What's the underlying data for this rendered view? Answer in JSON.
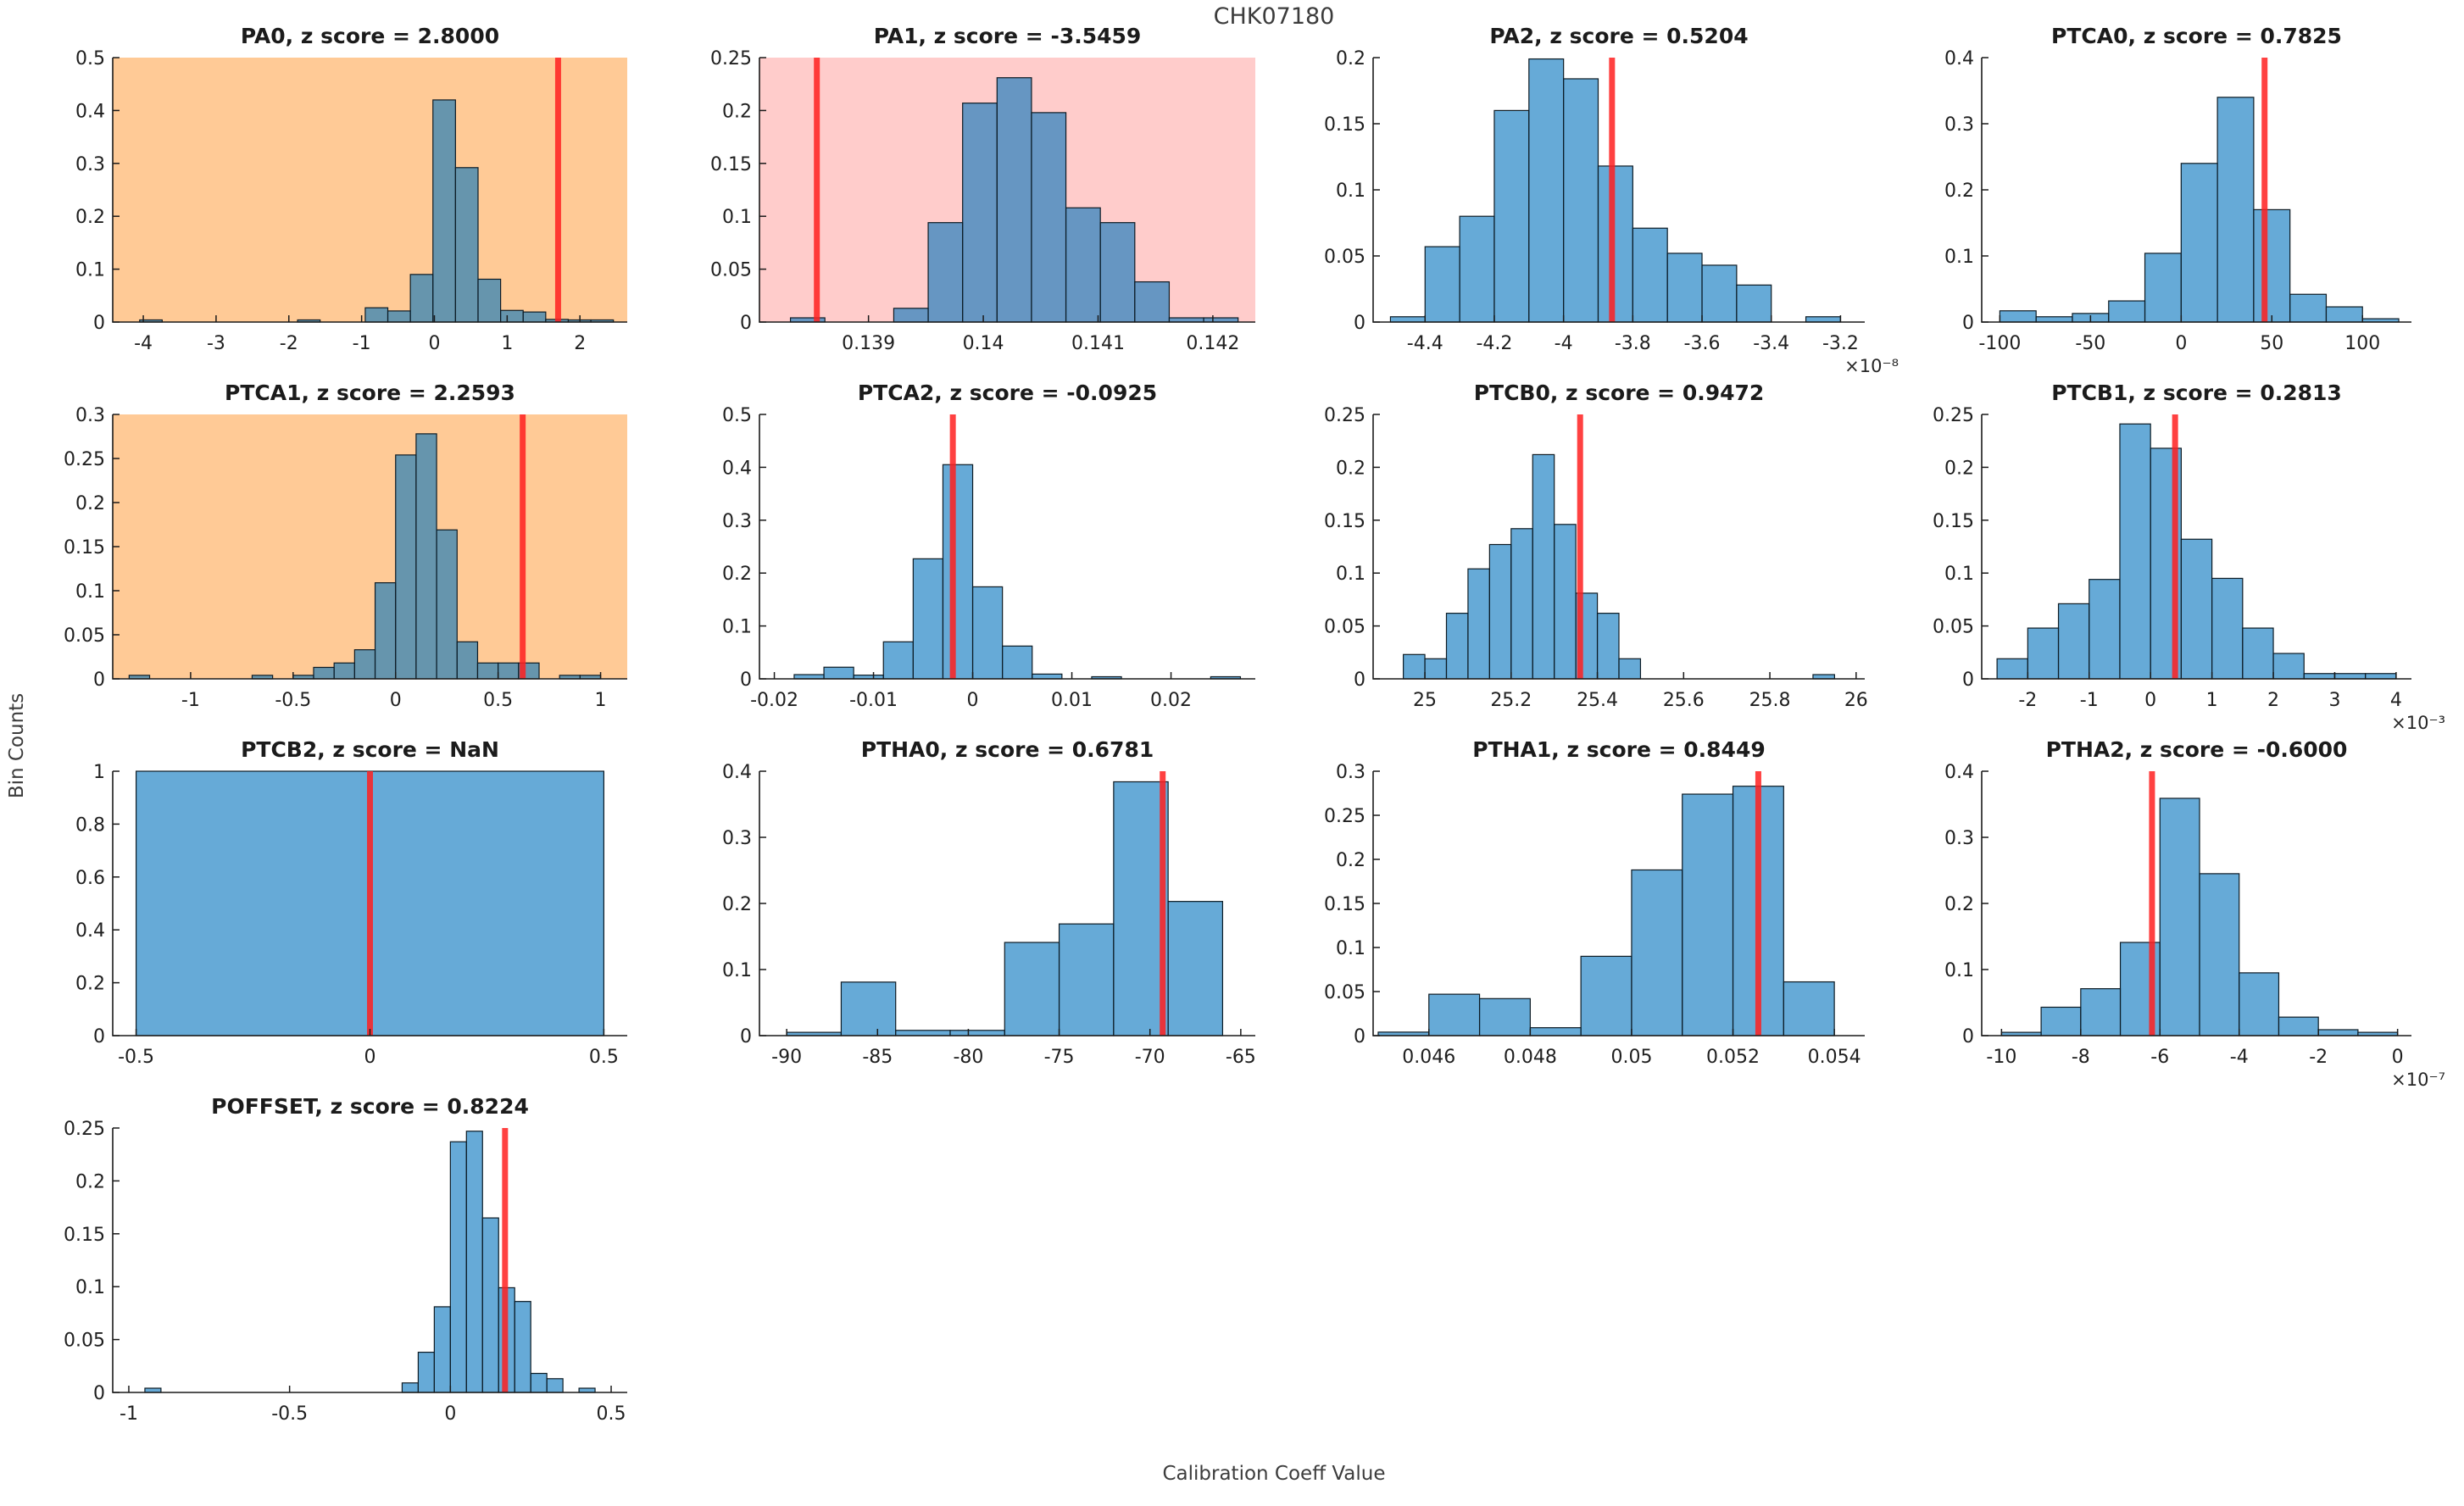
{
  "figure": {
    "title": "CHK07180",
    "xlabel": "Calibration Coeff Value",
    "ylabel": "Bin Counts",
    "colors": {
      "bar_fill": "#0072bd",
      "bar_edge": "#0d1b24",
      "red_line": "#ff2020",
      "bg_orange": "#ffca96",
      "bg_pink": "#ffcccb",
      "bg_white": "#ffffff",
      "axis": "#1a1a1a",
      "tick_text": "#1f1f1f"
    }
  },
  "chart_data": [
    {
      "id": "pa0",
      "type": "bar",
      "title": "PA0, z score = 2.8000",
      "z_score": "2.8000",
      "background": "orange",
      "xlim": [
        -4.42,
        2.65
      ],
      "ylim": [
        0,
        0.5
      ],
      "xtick_vals": [
        -4,
        -3,
        -2,
        -1,
        0,
        1,
        2
      ],
      "xtick_labels": [
        "-4",
        "-3",
        "-2",
        "-1",
        "0",
        "1",
        "2"
      ],
      "ytick_vals": [
        0,
        0.1,
        0.2,
        0.3,
        0.4,
        0.5
      ],
      "ytick_labels": [
        "0",
        "0.1",
        "0.2",
        "0.3",
        "0.4",
        "0.5"
      ],
      "x_exponent_label": null,
      "red_line_x": 1.7,
      "bars": [
        [
          -4.05,
          -3.74,
          0.004
        ],
        [
          -1.88,
          -1.57,
          0.004
        ],
        [
          -0.95,
          -0.64,
          0.027
        ],
        [
          -0.64,
          -0.33,
          0.021
        ],
        [
          -0.33,
          -0.02,
          0.09
        ],
        [
          -0.02,
          0.29,
          0.42
        ],
        [
          0.29,
          0.6,
          0.292
        ],
        [
          0.6,
          0.91,
          0.081
        ],
        [
          0.91,
          1.22,
          0.022
        ],
        [
          1.22,
          1.53,
          0.019
        ],
        [
          1.53,
          1.84,
          0.005
        ],
        [
          1.84,
          2.15,
          0.004
        ],
        [
          2.15,
          2.46,
          0.004
        ]
      ]
    },
    {
      "id": "pa1",
      "type": "bar",
      "title": "PA1, z score = -3.5459",
      "z_score": "-3.5459",
      "background": "pink",
      "xlim": [
        0.13805,
        0.14237
      ],
      "ylim": [
        0,
        0.25
      ],
      "xtick_vals": [
        0.139,
        0.14,
        0.141,
        0.142
      ],
      "xtick_labels": [
        "0.139",
        "0.14",
        "0.141",
        "0.142"
      ],
      "ytick_vals": [
        0,
        0.05,
        0.1,
        0.15,
        0.2,
        0.25
      ],
      "ytick_labels": [
        "0",
        "0.05",
        "0.1",
        "0.15",
        "0.2",
        "0.25"
      ],
      "x_exponent_label": null,
      "red_line_x": 0.13855,
      "bars": [
        [
          0.13832,
          0.13862,
          0.004
        ],
        [
          0.13922,
          0.13952,
          0.013
        ],
        [
          0.13952,
          0.13982,
          0.094
        ],
        [
          0.13982,
          0.14012,
          0.207
        ],
        [
          0.14012,
          0.14042,
          0.231
        ],
        [
          0.14042,
          0.14072,
          0.198
        ],
        [
          0.14072,
          0.14102,
          0.108
        ],
        [
          0.14102,
          0.14132,
          0.094
        ],
        [
          0.14132,
          0.14162,
          0.038
        ],
        [
          0.14162,
          0.14192,
          0.004
        ],
        [
          0.14192,
          0.14222,
          0.004
        ]
      ]
    },
    {
      "id": "pa2",
      "type": "bar",
      "title": "PA2, z score = 0.5204",
      "z_score": "0.5204",
      "background": "white",
      "xlim": [
        -4.55,
        -3.13
      ],
      "ylim": [
        0,
        0.2
      ],
      "xtick_vals": [
        -4.4,
        -4.2,
        -4,
        -3.8,
        -3.6,
        -3.4,
        -3.2
      ],
      "xtick_labels": [
        "-4.4",
        "-4.2",
        "-4",
        "-3.8",
        "-3.6",
        "-3.4",
        "-3.2"
      ],
      "ytick_vals": [
        0,
        0.05,
        0.1,
        0.15,
        0.2
      ],
      "ytick_labels": [
        "0",
        "0.05",
        "0.1",
        "0.15",
        "0.2"
      ],
      "x_exponent_label": "×10⁻⁸",
      "red_line_x": -3.86,
      "bars": [
        [
          -4.5,
          -4.4,
          0.004
        ],
        [
          -4.4,
          -4.3,
          0.057
        ],
        [
          -4.3,
          -4.2,
          0.08
        ],
        [
          -4.2,
          -4.1,
          0.16
        ],
        [
          -4.1,
          -4.0,
          0.199
        ],
        [
          -4.0,
          -3.9,
          0.184
        ],
        [
          -3.9,
          -3.8,
          0.118
        ],
        [
          -3.8,
          -3.7,
          0.071
        ],
        [
          -3.7,
          -3.6,
          0.052
        ],
        [
          -3.6,
          -3.5,
          0.043
        ],
        [
          -3.5,
          -3.4,
          0.028
        ],
        [
          -3.3,
          -3.2,
          0.004
        ]
      ]
    },
    {
      "id": "ptca0",
      "type": "bar",
      "title": "PTCA0, z score = 0.7825",
      "z_score": "0.7825",
      "background": "white",
      "xlim": [
        -110,
        127
      ],
      "ylim": [
        0,
        0.4
      ],
      "xtick_vals": [
        -100,
        -50,
        0,
        50,
        100
      ],
      "xtick_labels": [
        "-100",
        "-50",
        "0",
        "50",
        "100"
      ],
      "ytick_vals": [
        0,
        0.1,
        0.2,
        0.3,
        0.4
      ],
      "ytick_labels": [
        "0",
        "0.1",
        "0.2",
        "0.3",
        "0.4"
      ],
      "x_exponent_label": null,
      "red_line_x": 46,
      "bars": [
        [
          -100,
          -80,
          0.017
        ],
        [
          -80,
          -60,
          0.008
        ],
        [
          -60,
          -40,
          0.013
        ],
        [
          -40,
          -20,
          0.032
        ],
        [
          -20,
          0,
          0.104
        ],
        [
          0,
          20,
          0.24
        ],
        [
          20,
          40,
          0.34
        ],
        [
          40,
          60,
          0.17
        ],
        [
          60,
          80,
          0.042
        ],
        [
          80,
          100,
          0.023
        ],
        [
          100,
          120,
          0.005
        ]
      ]
    },
    {
      "id": "ptca1",
      "type": "bar",
      "title": "PTCA1, z score = 2.2593",
      "z_score": "2.2593",
      "background": "orange",
      "xlim": [
        -1.38,
        1.13
      ],
      "ylim": [
        0,
        0.3
      ],
      "xtick_vals": [
        -1,
        -0.5,
        0,
        0.5,
        1
      ],
      "xtick_labels": [
        "-1",
        "-0.5",
        "0",
        "0.5",
        "1"
      ],
      "ytick_vals": [
        0,
        0.05,
        0.1,
        0.15,
        0.2,
        0.25,
        0.3
      ],
      "ytick_labels": [
        "0",
        "0.05",
        "0.1",
        "0.15",
        "0.2",
        "0.25",
        "0.3"
      ],
      "x_exponent_label": null,
      "red_line_x": 0.62,
      "bars": [
        [
          -1.3,
          -1.2,
          0.004
        ],
        [
          -0.7,
          -0.6,
          0.004
        ],
        [
          -0.5,
          -0.4,
          0.004
        ],
        [
          -0.4,
          -0.3,
          0.013
        ],
        [
          -0.3,
          -0.2,
          0.018
        ],
        [
          -0.2,
          -0.1,
          0.033
        ],
        [
          -0.1,
          0,
          0.109
        ],
        [
          0,
          0.1,
          0.254
        ],
        [
          0.1,
          0.2,
          0.278
        ],
        [
          0.2,
          0.3,
          0.169
        ],
        [
          0.3,
          0.4,
          0.042
        ],
        [
          0.4,
          0.5,
          0.018
        ],
        [
          0.5,
          0.6,
          0.018
        ],
        [
          0.6,
          0.7,
          0.018
        ],
        [
          0.8,
          0.9,
          0.004
        ],
        [
          0.9,
          1.0,
          0.004
        ]
      ]
    },
    {
      "id": "ptca2",
      "type": "bar",
      "title": "PTCA2, z score = -0.0925",
      "z_score": "-0.0925",
      "background": "white",
      "xlim": [
        -0.0215,
        0.0285
      ],
      "ylim": [
        0,
        0.5
      ],
      "xtick_vals": [
        -0.02,
        -0.01,
        0,
        0.01,
        0.02
      ],
      "xtick_labels": [
        "-0.02",
        "-0.01",
        "0",
        "0.01",
        "0.02"
      ],
      "ytick_vals": [
        0,
        0.1,
        0.2,
        0.3,
        0.4,
        0.5
      ],
      "ytick_labels": [
        "0",
        "0.1",
        "0.2",
        "0.3",
        "0.4",
        "0.5"
      ],
      "x_exponent_label": null,
      "red_line_x": -0.002,
      "bars": [
        [
          -0.018,
          -0.015,
          0.008
        ],
        [
          -0.015,
          -0.012,
          0.022
        ],
        [
          -0.012,
          -0.009,
          0.007
        ],
        [
          -0.009,
          -0.006,
          0.07
        ],
        [
          -0.006,
          -0.003,
          0.227
        ],
        [
          -0.003,
          0,
          0.405
        ],
        [
          0,
          0.003,
          0.174
        ],
        [
          0.003,
          0.006,
          0.062
        ],
        [
          0.006,
          0.009,
          0.009
        ],
        [
          0.012,
          0.015,
          0.004
        ],
        [
          0.024,
          0.027,
          0.004
        ]
      ]
    },
    {
      "id": "ptcb0",
      "type": "bar",
      "title": "PTCB0, z score = 0.9472",
      "z_score": "0.9472",
      "background": "white",
      "xlim": [
        24.88,
        26.02
      ],
      "ylim": [
        0,
        0.25
      ],
      "xtick_vals": [
        25,
        25.2,
        25.4,
        25.6,
        25.8,
        26
      ],
      "xtick_labels": [
        "25",
        "25.2",
        "25.4",
        "25.6",
        "25.8",
        "26"
      ],
      "ytick_vals": [
        0,
        0.05,
        0.1,
        0.15,
        0.2,
        0.25
      ],
      "ytick_labels": [
        "0",
        "0.05",
        "0.1",
        "0.15",
        "0.2",
        "0.25"
      ],
      "x_exponent_label": null,
      "red_line_x": 25.36,
      "bars": [
        [
          24.95,
          25.0,
          0.023
        ],
        [
          25.0,
          25.05,
          0.019
        ],
        [
          25.05,
          25.1,
          0.062
        ],
        [
          25.1,
          25.15,
          0.104
        ],
        [
          25.15,
          25.2,
          0.127
        ],
        [
          25.2,
          25.25,
          0.142
        ],
        [
          25.25,
          25.3,
          0.212
        ],
        [
          25.3,
          25.35,
          0.146
        ],
        [
          25.35,
          25.4,
          0.081
        ],
        [
          25.4,
          25.45,
          0.062
        ],
        [
          25.45,
          25.5,
          0.019
        ],
        [
          25.9,
          25.95,
          0.004
        ]
      ]
    },
    {
      "id": "ptcb1",
      "type": "bar",
      "title": "PTCB1, z score = 0.2813",
      "z_score": "0.2813",
      "background": "white",
      "xlim": [
        -2.75,
        4.25
      ],
      "ylim": [
        0,
        0.25
      ],
      "xtick_vals": [
        -2,
        -1,
        0,
        1,
        2,
        3,
        4
      ],
      "xtick_labels": [
        "-2",
        "-1",
        "0",
        "1",
        "2",
        "3",
        "4"
      ],
      "ytick_vals": [
        0,
        0.05,
        0.1,
        0.15,
        0.2,
        0.25
      ],
      "ytick_labels": [
        "0",
        "0.05",
        "0.1",
        "0.15",
        "0.2",
        "0.25"
      ],
      "x_exponent_label": "×10⁻³",
      "red_line_x": 0.4,
      "bars": [
        [
          -2.5,
          -2,
          0.019
        ],
        [
          -2,
          -1.5,
          0.048
        ],
        [
          -1.5,
          -1,
          0.071
        ],
        [
          -1,
          -0.5,
          0.094
        ],
        [
          -0.5,
          0,
          0.241
        ],
        [
          0,
          0.5,
          0.218
        ],
        [
          0.5,
          1,
          0.132
        ],
        [
          1,
          1.5,
          0.095
        ],
        [
          1.5,
          2,
          0.048
        ],
        [
          2,
          2.5,
          0.024
        ],
        [
          2.5,
          3,
          0.005
        ],
        [
          3,
          3.5,
          0.005
        ],
        [
          3.5,
          4,
          0.005
        ]
      ]
    },
    {
      "id": "ptcb2",
      "type": "bar",
      "title": "PTCB2, z score = NaN",
      "z_score": "NaN",
      "background": "white",
      "xlim": [
        -0.55,
        0.55
      ],
      "ylim": [
        0,
        1
      ],
      "xtick_vals": [
        -0.5,
        0,
        0.5
      ],
      "xtick_labels": [
        "-0.5",
        "0",
        "0.5"
      ],
      "ytick_vals": [
        0,
        0.2,
        0.4,
        0.6,
        0.8,
        1
      ],
      "ytick_labels": [
        "0",
        "0.2",
        "0.4",
        "0.6",
        "0.8",
        "1"
      ],
      "x_exponent_label": null,
      "red_line_x": 0,
      "bars": [
        [
          -0.5,
          0.5,
          1.0
        ]
      ]
    },
    {
      "id": "ptha0",
      "type": "bar",
      "title": "PTHA0, z score = 0.6781",
      "z_score": "0.6781",
      "background": "white",
      "xlim": [
        -91.5,
        -64.2
      ],
      "ylim": [
        0,
        0.4
      ],
      "xtick_vals": [
        -90,
        -85,
        -80,
        -75,
        -70,
        -65
      ],
      "xtick_labels": [
        "-90",
        "-85",
        "-80",
        "-75",
        "-70",
        "-65"
      ],
      "ytick_vals": [
        0,
        0.1,
        0.2,
        0.3,
        0.4
      ],
      "ytick_labels": [
        "0",
        "0.1",
        "0.2",
        "0.3",
        "0.4"
      ],
      "x_exponent_label": null,
      "red_line_x": -69.3,
      "bars": [
        [
          -90,
          -87,
          0.005
        ],
        [
          -87,
          -84,
          0.081
        ],
        [
          -84,
          -81,
          0.008
        ],
        [
          -81,
          -78,
          0.008
        ],
        [
          -78,
          -75,
          0.141
        ],
        [
          -75,
          -72,
          0.169
        ],
        [
          -72,
          -69,
          0.384
        ],
        [
          -69,
          -66,
          0.203
        ]
      ]
    },
    {
      "id": "ptha1",
      "type": "bar",
      "title": "PTHA1, z score = 0.8449",
      "z_score": "0.8449",
      "background": "white",
      "xlim": [
        0.0449,
        0.0546
      ],
      "ylim": [
        0,
        0.3
      ],
      "xtick_vals": [
        0.046,
        0.048,
        0.05,
        0.052,
        0.054
      ],
      "xtick_labels": [
        "0.046",
        "0.048",
        "0.05",
        "0.052",
        "0.054"
      ],
      "ytick_vals": [
        0,
        0.05,
        0.1,
        0.15,
        0.2,
        0.25,
        0.3
      ],
      "ytick_labels": [
        "0",
        "0.05",
        "0.1",
        "0.15",
        "0.2",
        "0.25",
        "0.3"
      ],
      "x_exponent_label": null,
      "red_line_x": 0.0525,
      "bars": [
        [
          0.045,
          0.046,
          0.004
        ],
        [
          0.046,
          0.047,
          0.047
        ],
        [
          0.047,
          0.048,
          0.042
        ],
        [
          0.048,
          0.049,
          0.009
        ],
        [
          0.049,
          0.05,
          0.09
        ],
        [
          0.05,
          0.051,
          0.188
        ],
        [
          0.051,
          0.052,
          0.274
        ],
        [
          0.052,
          0.053,
          0.283
        ],
        [
          0.053,
          0.054,
          0.061
        ]
      ]
    },
    {
      "id": "ptha2",
      "type": "bar",
      "title": "PTHA2, z score = -0.6000",
      "z_score": "-0.6000",
      "background": "white",
      "xlim": [
        -10.5,
        0.35
      ],
      "ylim": [
        0,
        0.4
      ],
      "xtick_vals": [
        -10,
        -8,
        -6,
        -4,
        -2,
        0
      ],
      "xtick_labels": [
        "-10",
        "-8",
        "-6",
        "-4",
        "-2",
        "0"
      ],
      "ytick_vals": [
        0,
        0.1,
        0.2,
        0.3,
        0.4
      ],
      "ytick_labels": [
        "0",
        "0.1",
        "0.2",
        "0.3",
        "0.4"
      ],
      "x_exponent_label": "×10⁻⁷",
      "red_line_x": -6.2,
      "bars": [
        [
          -10,
          -9,
          0.005
        ],
        [
          -9,
          -8,
          0.043
        ],
        [
          -8,
          -7,
          0.071
        ],
        [
          -7,
          -6,
          0.141
        ],
        [
          -6,
          -5,
          0.359
        ],
        [
          -5,
          -4,
          0.245
        ],
        [
          -4,
          -3,
          0.095
        ],
        [
          -3,
          -2,
          0.028
        ],
        [
          -2,
          -1,
          0.009
        ],
        [
          -1,
          0,
          0.005
        ]
      ]
    },
    {
      "id": "poffset",
      "type": "bar",
      "title": "POFFSET, z score = 0.8224",
      "z_score": "0.8224",
      "background": "white",
      "xlim": [
        -1.05,
        0.55
      ],
      "ylim": [
        0,
        0.25
      ],
      "xtick_vals": [
        -1,
        -0.5,
        0,
        0.5
      ],
      "xtick_labels": [
        "-1",
        "-0.5",
        "0",
        "0.5"
      ],
      "ytick_vals": [
        0,
        0.05,
        0.1,
        0.15,
        0.2,
        0.25
      ],
      "ytick_labels": [
        "0",
        "0.05",
        "0.1",
        "0.15",
        "0.2",
        "0.25"
      ],
      "x_exponent_label": null,
      "red_line_x": 0.17,
      "bars": [
        [
          -0.95,
          -0.9,
          0.004
        ],
        [
          -0.15,
          -0.1,
          0.009
        ],
        [
          -0.1,
          -0.05,
          0.038
        ],
        [
          -0.05,
          0,
          0.081
        ],
        [
          0,
          0.05,
          0.237
        ],
        [
          0.05,
          0.1,
          0.247
        ],
        [
          0.1,
          0.15,
          0.165
        ],
        [
          0.15,
          0.2,
          0.099
        ],
        [
          0.2,
          0.25,
          0.086
        ],
        [
          0.25,
          0.3,
          0.018
        ],
        [
          0.3,
          0.35,
          0.013
        ],
        [
          0.4,
          0.45,
          0.004
        ]
      ]
    }
  ]
}
